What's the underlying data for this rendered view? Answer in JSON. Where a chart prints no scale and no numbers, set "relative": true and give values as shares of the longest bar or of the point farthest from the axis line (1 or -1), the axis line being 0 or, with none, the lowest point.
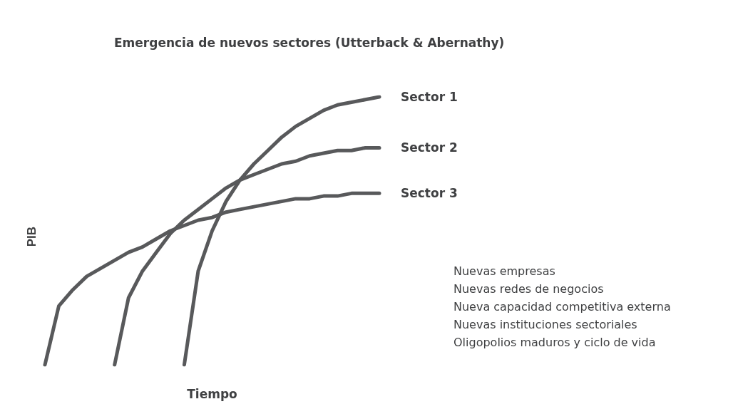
{
  "chart_data": {
    "type": "line",
    "title": "Emergencia de nuevos sectores (Utterback & Abernathy)",
    "xlabel": "Tiempo",
    "ylabel": "PIB",
    "relative": true,
    "grid": false,
    "legend": false,
    "marker": "none",
    "line_style": "solid",
    "categories": [
      null,
      null,
      null,
      null,
      null,
      null,
      null,
      null,
      null,
      null,
      null,
      null,
      null,
      null,
      null,
      null,
      null,
      null,
      null,
      null,
      null,
      null,
      null,
      null,
      null
    ],
    "series": [
      {
        "name": "Sector 1",
        "color": "#58595b",
        "values": [
          null,
          null,
          null,
          null,
          null,
          null,
          null,
          null,
          null,
          null,
          0,
          0.35,
          0.5,
          0.61,
          0.69,
          0.75,
          0.8,
          0.85,
          0.89,
          0.92,
          0.95,
          0.97,
          0.98,
          0.99,
          1
        ]
      },
      {
        "name": "Sector 2",
        "color": "#58595b",
        "values": [
          null,
          null,
          null,
          null,
          null,
          0,
          0.25,
          0.35,
          0.42,
          0.49,
          0.54,
          0.58,
          0.62,
          0.66,
          0.69,
          0.71,
          0.73,
          0.75,
          0.76,
          0.78,
          0.79,
          0.8,
          0.8,
          0.81,
          0.81
        ]
      },
      {
        "name": "Sector 3",
        "color": "#58595b",
        "values": [
          0,
          0.22,
          0.28,
          0.33,
          0.36,
          0.39,
          0.42,
          0.44,
          0.47,
          0.5,
          0.52,
          0.54,
          0.55,
          0.57,
          0.58,
          0.59,
          0.6,
          0.61,
          0.62,
          0.62,
          0.63,
          0.63,
          0.64,
          0.64,
          0.64
        ]
      }
    ],
    "annotations": [
      "Nuevas empresas",
      "Nuevas redes de negocios",
      "Nueva capacidad competitiva externa",
      "Nuevas instituciones sectoriales",
      "Oligopolios maduros y ciclo de vida"
    ]
  }
}
